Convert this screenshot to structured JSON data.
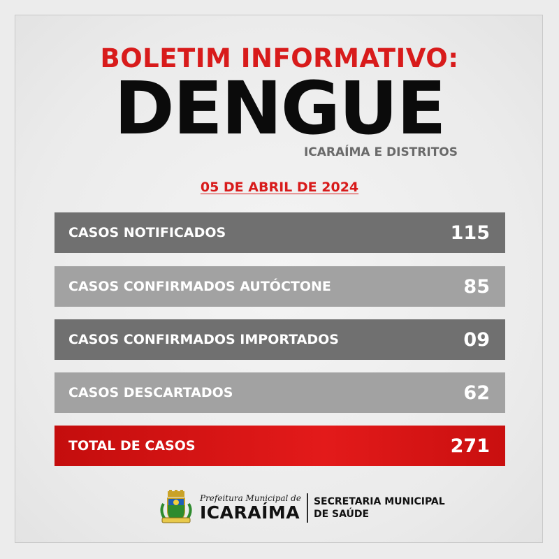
{
  "header": {
    "title_top": "BOLETIM INFORMATIVO:",
    "title_main": "DENGUE",
    "subtitle": "ICARAÍMA E DISTRITOS",
    "date": "05 DE ABRIL DE 2024"
  },
  "rows": [
    {
      "label": "CASOS NOTIFICADOS",
      "value": "115"
    },
    {
      "label": "CASOS CONFIRMADOS AUTÓCTONE",
      "value": "85"
    },
    {
      "label": "CASOS CONFIRMADOS IMPORTADOS",
      "value": "09"
    },
    {
      "label": "CASOS DESCARTADOS",
      "value": "62"
    }
  ],
  "total": {
    "label": "TOTAL DE CASOS",
    "value": "271"
  },
  "footer": {
    "prefeitura_label": "Prefeitura Municipal de",
    "city_name": "ICARAÍMA",
    "secretaria_line1": "SECRETARIA MUNICIPAL",
    "secretaria_line2": "DE SAÚDE",
    "emblem_icon": "municipal-coat-of-arms-icon"
  },
  "colors": {
    "accent_red": "#d81b1b",
    "row_dark": "#707070",
    "row_light": "#a2a2a2"
  }
}
